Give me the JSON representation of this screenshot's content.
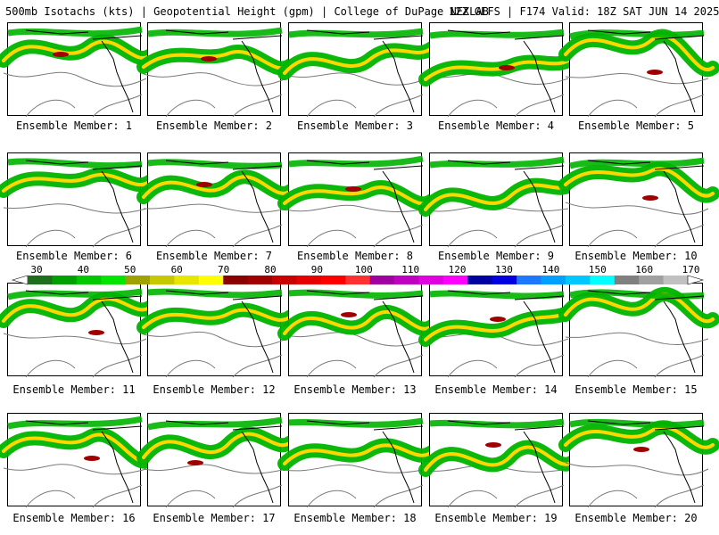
{
  "header": {
    "product": "500mb Isotachs (kts) | Geopotential Height (gpm) | College of DuPage NEXLAB",
    "run": "12Z GEFS | F174 Valid: 18Z SAT JUN 14 2025"
  },
  "panel_label_prefix": "Ensemble Member:",
  "members": [
    {
      "number": "1",
      "label": "Ensemble Member: 1"
    },
    {
      "number": "2",
      "label": "Ensemble Member: 2"
    },
    {
      "number": "3",
      "label": "Ensemble Member: 3"
    },
    {
      "number": "4",
      "label": "Ensemble Member: 4"
    },
    {
      "number": "5",
      "label": "Ensemble Member: 5"
    },
    {
      "number": "6",
      "label": "Ensemble Member: 6"
    },
    {
      "number": "7",
      "label": "Ensemble Member: 7"
    },
    {
      "number": "8",
      "label": "Ensemble Member: 8"
    },
    {
      "number": "9",
      "label": "Ensemble Member: 9"
    },
    {
      "number": "10",
      "label": "Ensemble Member: 10"
    },
    {
      "number": "11",
      "label": "Ensemble Member: 11"
    },
    {
      "number": "12",
      "label": "Ensemble Member: 12"
    },
    {
      "number": "13",
      "label": "Ensemble Member: 13"
    },
    {
      "number": "14",
      "label": "Ensemble Member: 14"
    },
    {
      "number": "15",
      "label": "Ensemble Member: 15"
    },
    {
      "number": "16",
      "label": "Ensemble Member: 16"
    },
    {
      "number": "17",
      "label": "Ensemble Member: 17"
    },
    {
      "number": "18",
      "label": "Ensemble Member: 18"
    },
    {
      "number": "19",
      "label": "Ensemble Member: 19"
    },
    {
      "number": "20",
      "label": "Ensemble Member: 20"
    }
  ],
  "colorbar": {
    "labels": [
      "30",
      "40",
      "50",
      "60",
      "70",
      "80",
      "90",
      "100",
      "110",
      "120",
      "130",
      "140",
      "150",
      "160",
      "170"
    ],
    "colors": [
      "#1e6e1e",
      "#00a000",
      "#00c800",
      "#00e600",
      "#a0a000",
      "#c8c800",
      "#e6e600",
      "#ffff00",
      "#8b0000",
      "#a00000",
      "#c80000",
      "#e60000",
      "#ff0000",
      "#ff3030",
      "#a000a0",
      "#c000c0",
      "#e000e0",
      "#ff00ff",
      "#0000a0",
      "#0000e0",
      "#1e78ff",
      "#00a0ff",
      "#00c8ff",
      "#00ffff",
      "#808080",
      "#a0a0a0",
      "#c0c0c0"
    ]
  },
  "colors": {
    "jet_weak": "#00b400",
    "jet_mid": "#ffd700",
    "jet_strong": "#a00000",
    "height_contour": "#7a7a7a",
    "coast": "#000000"
  }
}
